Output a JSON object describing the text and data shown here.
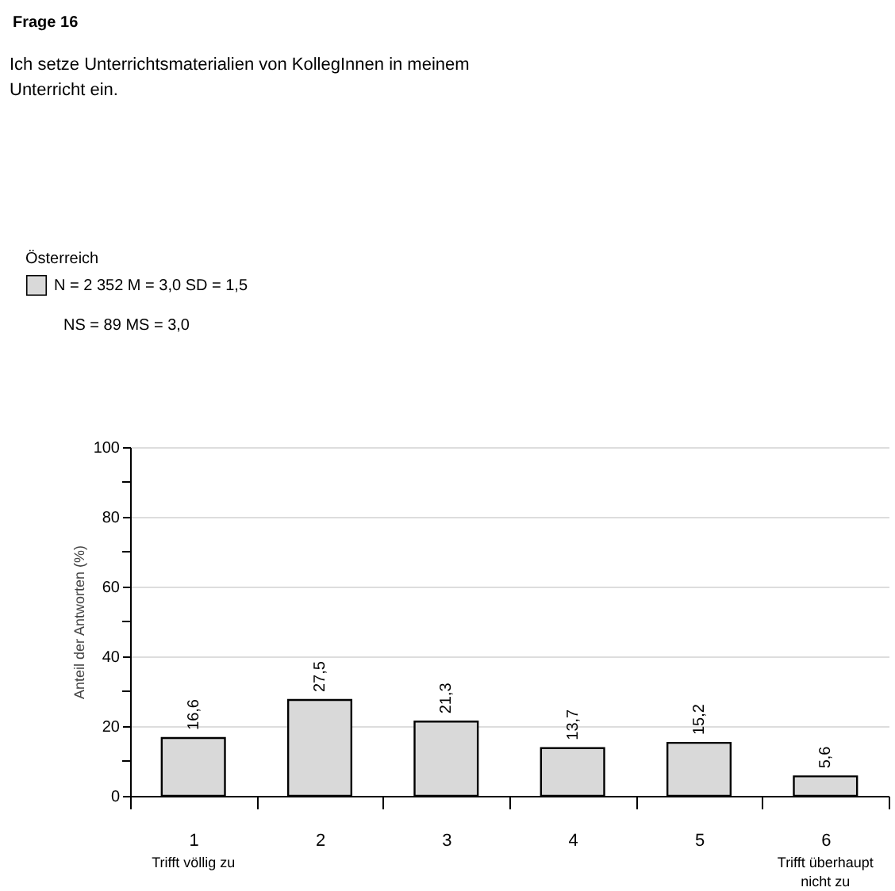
{
  "chart_data": {
    "type": "bar",
    "title": "Frage 16",
    "subtitle": "Ich setze Unterrichtsmaterialien von KollegInnen in meinem Unterricht ein.",
    "legend_title": "Österreich",
    "ylabel": "Anteil der Antworten (%)",
    "categories": [
      "1",
      "2",
      "3",
      "4",
      "5",
      "6"
    ],
    "series": [
      {
        "name": "N = 2 352 M = 3,0 SD = 1,5",
        "color": "#d9d9d9",
        "values": [
          16.6,
          27.5,
          21.3,
          13.7,
          15.2,
          5.6
        ],
        "value_labels": [
          "16,6",
          "27,5",
          "21,3",
          "13,7",
          "15,2",
          "5,6"
        ]
      }
    ],
    "ylim": [
      0,
      100
    ],
    "yticks": [
      0,
      {
        "value": 10,
        "label": null
      },
      20,
      {
        "value": 30,
        "label": null
      },
      40,
      {
        "value": 50,
        "label": null
      },
      60,
      {
        "value": 70,
        "label": null
      },
      80,
      {
        "value": 90,
        "label": null
      },
      100
    ],
    "grid": "y",
    "legend": "top left",
    "annotations": [
      "NS = 89  MS = 3,0",
      "Trifft völlig zu",
      "Trifft überhaupt nicht zu"
    ]
  }
}
